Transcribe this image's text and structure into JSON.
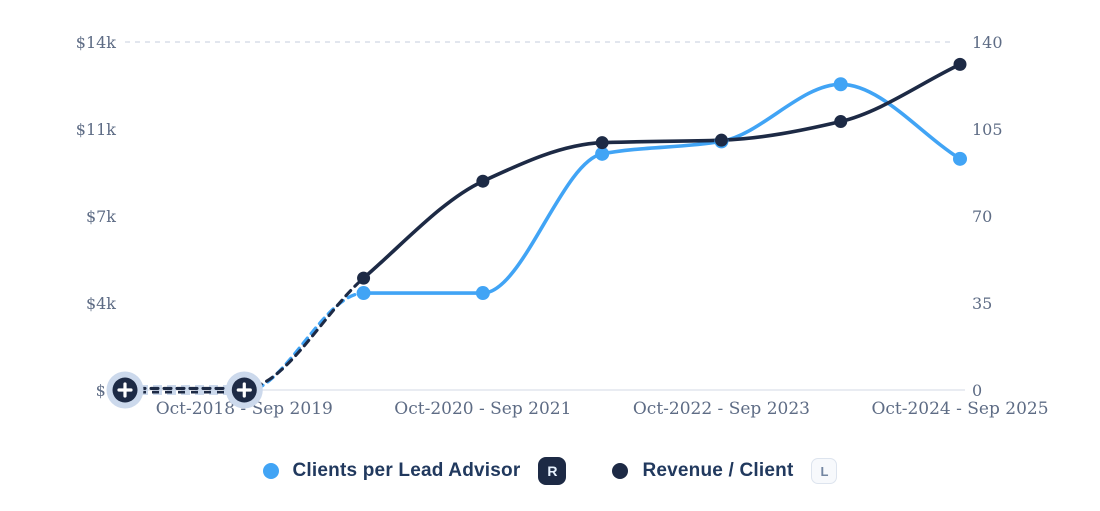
{
  "colors": {
    "blue": "#41a4f5",
    "navy": "#1d2a45",
    "axis_text": "#5e6c85",
    "grid_dashed": "#d9dee8",
    "axis_line": "#e2e6ed",
    "halo": "#ccd9ec",
    "legend_text": "#21395e",
    "r_badge_bg": "#1d2a45",
    "r_badge_text": "#e8f3ff",
    "l_badge_bg": "#f7f9fc",
    "l_badge_border": "#dde4ee",
    "l_badge_text": "#7386a1",
    "plus_glyph": "#ffffff"
  },
  "chart_data": {
    "type": "line",
    "x_count": 8,
    "x_tick_labels": [
      {
        "index": 1,
        "label": "Oct-2018 - Sep 2019"
      },
      {
        "index": 3,
        "label": "Oct-2020 - Sep 2021"
      },
      {
        "index": 5,
        "label": "Oct-2022 - Sep 2023"
      },
      {
        "index": 7,
        "label": "Oct-2024 - Sep 2025"
      }
    ],
    "left_axis": {
      "max": 14000,
      "ticks": [
        {
          "v": 0,
          "label": "$0"
        },
        {
          "v": 3500,
          "label": "$4k"
        },
        {
          "v": 7000,
          "label": "$7k"
        },
        {
          "v": 10500,
          "label": "$11k"
        },
        {
          "v": 14000,
          "label": "$14k"
        }
      ]
    },
    "right_axis": {
      "max": 140,
      "ticks": [
        {
          "v": 0,
          "label": "0"
        },
        {
          "v": 35,
          "label": "35"
        },
        {
          "v": 70,
          "label": "70"
        },
        {
          "v": 105,
          "label": "105"
        },
        {
          "v": 140,
          "label": "140"
        }
      ]
    },
    "series": [
      {
        "name": "Clients per Lead Advisor",
        "axis": "right",
        "axis_badge": "R",
        "color": "#41a4f5",
        "values": [
          0,
          0,
          39,
          39,
          95,
          100,
          123,
          93
        ]
      },
      {
        "name": "Revenue / Client",
        "axis": "left",
        "axis_badge": "L",
        "color": "#1d2a45",
        "values": [
          0,
          0,
          4500,
          8400,
          9950,
          10050,
          10800,
          13100
        ]
      }
    ],
    "dashed_until_index": 2,
    "plus_marker_indices": [
      0,
      1
    ],
    "grid": "top-dashed-and-bottom-axis-only",
    "legend_position": "bottom"
  }
}
